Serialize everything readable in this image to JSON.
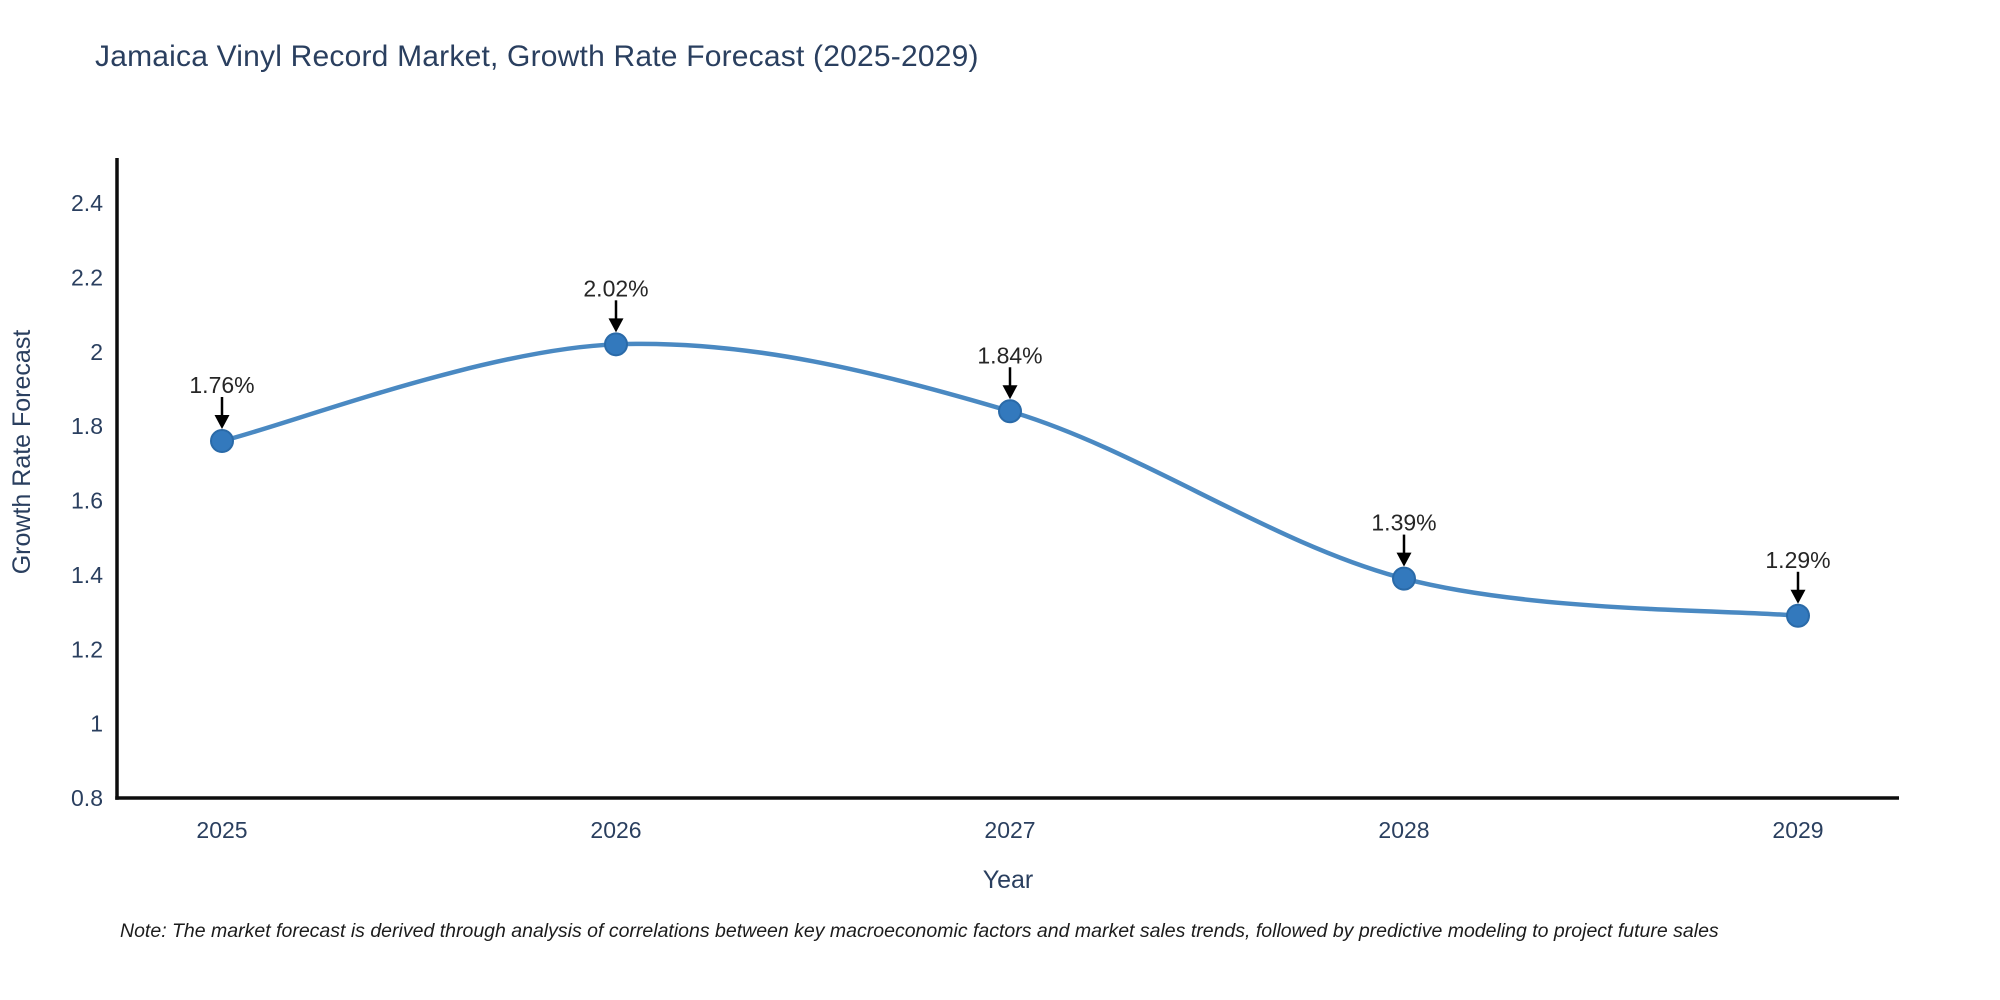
{
  "page": {
    "background": "#ffffff"
  },
  "chart_data": {
    "type": "line",
    "title": "Jamaica Vinyl Record Market, Growth Rate Forecast (2025-2029)",
    "xlabel": "Year",
    "ylabel": "Growth Rate Forecast",
    "x": [
      2025,
      2026,
      2027,
      2028,
      2029
    ],
    "series": [
      {
        "name": "Growth Rate Forecast",
        "values": [
          1.76,
          2.02,
          1.84,
          1.39,
          1.29
        ]
      }
    ],
    "point_labels": [
      "1.76%",
      "2.02%",
      "1.84%",
      "1.39%",
      "1.29%"
    ],
    "xticks": [
      2025,
      2026,
      2027,
      2028,
      2029
    ],
    "yticks": [
      0.8,
      1,
      1.2,
      1.4,
      1.6,
      1.8,
      2,
      2.2,
      2.4
    ],
    "ylim": [
      0.8,
      2.52
    ],
    "grid": false,
    "legend_position": "none",
    "line_shape": "spline",
    "marker": "circle",
    "annotation_style": "value label above each point with black down-arrow",
    "colors": {
      "line": "#4a89c2",
      "marker_fill": "#3379bd",
      "marker_stroke": "#2a6aa8",
      "axis": "#0d0d0d",
      "tick_text": "#2a3f5f",
      "title_text": "#2a3f5f",
      "annotation_text": "#262626",
      "arrow": "#000000"
    }
  },
  "note": {
    "text": "Note: The market forecast is derived through analysis of correlations between key macroeconomic factors and market sales trends, followed by predictive modeling to project future sales"
  }
}
